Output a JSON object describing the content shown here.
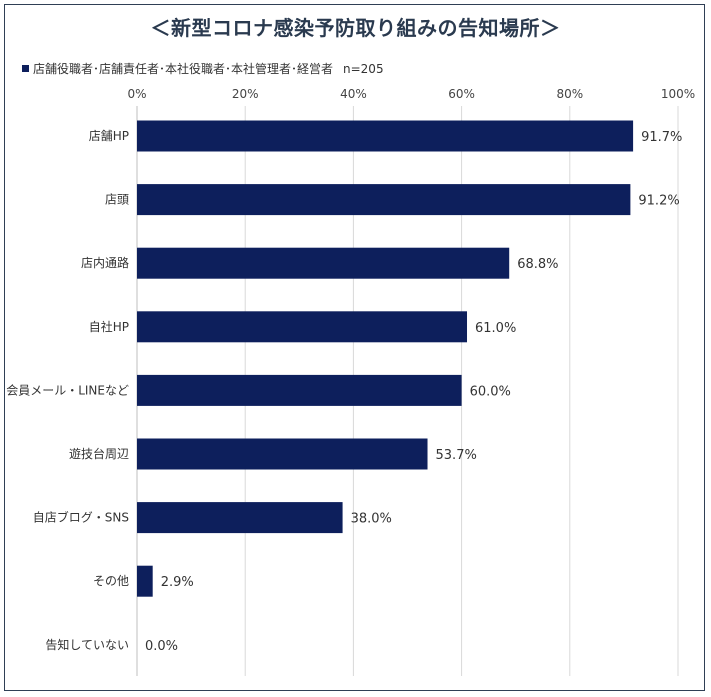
{
  "chart_data": {
    "type": "bar",
    "orientation": "horizontal",
    "title": "＜新型コロナ感染予防取り組みの告知場所＞",
    "series": [
      {
        "name": "店舗役職者･店舗責任者･本社役職者･本社管理者･経営者",
        "values": [
          91.7,
          91.2,
          68.8,
          61.0,
          60.0,
          53.7,
          38.0,
          2.9,
          0.0
        ]
      }
    ],
    "categories": [
      "店舗HP",
      "店頭",
      "店内通路",
      "自社HP",
      "会員メール・LINEなど",
      "遊技台周辺",
      "自店ブログ・SNS",
      "その他",
      "告知していない"
    ],
    "data_labels": [
      "91.7%",
      "91.2%",
      "68.8%",
      "61.0%",
      "60.0%",
      "53.7%",
      "38.0%",
      "2.9%",
      "0.0%"
    ],
    "x_ticks": [
      "0%",
      "20%",
      "40%",
      "60%",
      "80%",
      "100%"
    ],
    "xlim": [
      0,
      100
    ],
    "grid": true,
    "legend_position": "top-left",
    "bar_color": "#0d1f5c"
  },
  "legend": {
    "label": "店舗役職者･店舗責任者･本社役職者･本社管理者･経営者",
    "note": "n=205"
  }
}
